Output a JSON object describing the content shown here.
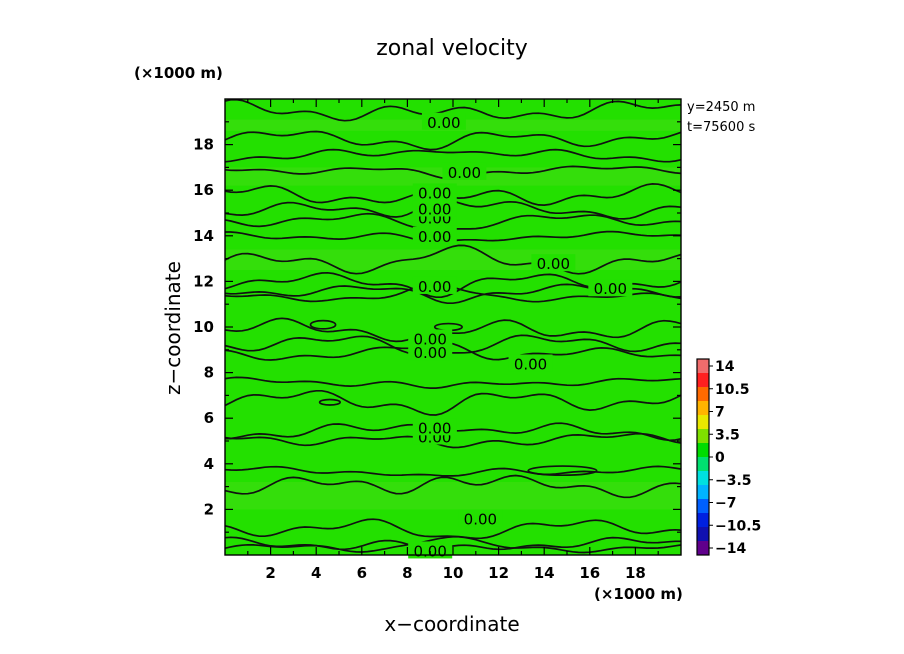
{
  "chart_data": {
    "type": "contour",
    "title": "zonal velocity",
    "xlabel": "x−coordinate",
    "ylabel": "z−coordinate",
    "x_unit": "(×1000 m)",
    "y_unit": "(×1000 m)",
    "info": [
      "y=2450 m",
      "t=75600 s"
    ],
    "xlim": [
      0,
      20
    ],
    "ylim": [
      0,
      20
    ],
    "xticks": [
      "2",
      "4",
      "6",
      "8",
      "10",
      "12",
      "14",
      "16",
      "18"
    ],
    "yticks": [
      "2",
      "4",
      "6",
      "8",
      "10",
      "12",
      "14",
      "16",
      "18"
    ],
    "contour_label": "0.00",
    "contour_levels_z": [
      0.3,
      0.5,
      1.2,
      3.0,
      3.7,
      5.1,
      5.4,
      6.8,
      7.6,
      8.8,
      9.3,
      9.9,
      11.3,
      11.6,
      12.0,
      12.8,
      14.0,
      14.7,
      15.1,
      15.8,
      16.9,
      17.5,
      18.3,
      19.5
    ],
    "contour_labels": [
      {
        "x": 9.0,
        "z": 0.2
      },
      {
        "x": 11.2,
        "z": 1.6
      },
      {
        "x": 9.2,
        "z": 5.2
      },
      {
        "x": 9.2,
        "z": 5.6
      },
      {
        "x": 13.4,
        "z": 8.4
      },
      {
        "x": 9.0,
        "z": 8.9
      },
      {
        "x": 9.0,
        "z": 9.5
      },
      {
        "x": 9.2,
        "z": 11.8
      },
      {
        "x": 16.9,
        "z": 11.7
      },
      {
        "x": 9.2,
        "z": 14.0
      },
      {
        "x": 9.2,
        "z": 14.8
      },
      {
        "x": 9.2,
        "z": 15.2
      },
      {
        "x": 9.2,
        "z": 15.9
      },
      {
        "x": 14.4,
        "z": 12.8
      },
      {
        "x": 10.5,
        "z": 16.8
      },
      {
        "x": 9.6,
        "z": 19.0
      }
    ],
    "colorbar": {
      "labels": [
        "14",
        "10.5",
        "7",
        "3.5",
        "0",
        "−3.5",
        "−7",
        "−10.5",
        "−14"
      ],
      "colors": [
        "#f06c6c",
        "#ff2020",
        "#ff6a00",
        "#ffb400",
        "#e8e800",
        "#7fe000",
        "#00dc00",
        "#00e070",
        "#00e0e0",
        "#00b4ff",
        "#0060ff",
        "#0020e0",
        "#1010b0",
        "#60008c"
      ]
    },
    "field_color": "#23e000",
    "field_color_alt": "#44dc14",
    "grid": false
  }
}
